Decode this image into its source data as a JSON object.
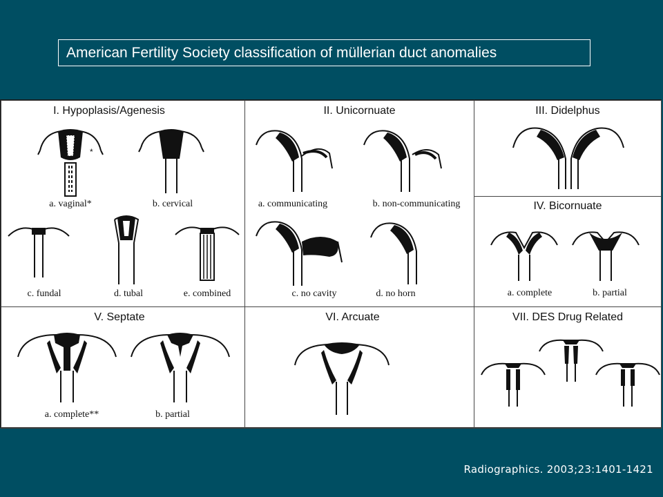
{
  "slide": {
    "title": "American Fertility Society classification of müllerian duct anomalies",
    "citation": "Radiographics. 2003;23:1401-1421"
  },
  "classes": {
    "hypoplasia": {
      "heading": "I.  Hypoplasis/Agenesis",
      "a": "a. vaginal*",
      "b": "b. cervical",
      "c": "c. fundal",
      "d": "d. tubal",
      "e": "e. combined"
    },
    "unicornuate": {
      "heading": "II.  Unicornuate",
      "a": "a. communicating",
      "b": "b. non-communicating",
      "c": "c. no cavity",
      "d": "d. no horn"
    },
    "didelphus": {
      "heading": "III.  Didelphus"
    },
    "bicornuate": {
      "heading": "IV.  Bicornuate",
      "a": "a. complete",
      "b": "b. partial"
    },
    "septate": {
      "heading": "V.  Septate",
      "a": "a. complete**",
      "b": "b. partial"
    },
    "arcuate": {
      "heading": "VI.  Arcuate"
    },
    "des": {
      "heading": "VII.  DES Drug Related"
    }
  },
  "colors": {
    "background": "#004e62",
    "panel": "#ffffff",
    "ink": "#111111"
  }
}
